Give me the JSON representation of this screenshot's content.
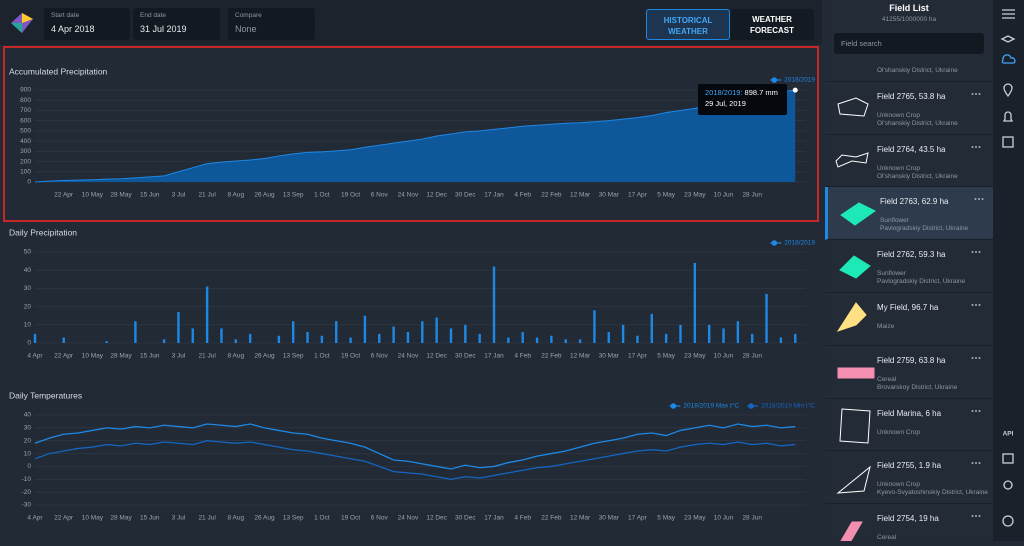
{
  "header": {
    "start_label": "Start date",
    "start_value": "4 Apr 2018",
    "end_label": "End date",
    "end_value": "31 Jul 2019",
    "compare_label": "Compare",
    "compare_value": "None",
    "historical": "HISTORICAL WEATHER",
    "forecast": "WEATHER FORECAST"
  },
  "field_list": {
    "title": "Field List",
    "area": "41255/1000000 ha",
    "search": "Field search",
    "items": [
      {
        "location": "Ol'shanskiy District, Ukraine"
      },
      {
        "name": "Field 2765, 53.8 ha",
        "crop": "Unknown Crop",
        "location": "Ol'shanskiy District, Ukraine"
      },
      {
        "name": "Field 2764, 43.5 ha",
        "crop": "Unknown Crop",
        "location": "Ol'shanskiy District, Ukraine"
      },
      {
        "name": "Field 2763, 62.9 ha",
        "crop": "Sunflower",
        "location": "Pavlogradskiy District, Ukraine"
      },
      {
        "name": "Field 2762, 59.3 ha",
        "crop": "Sunflower",
        "location": "Pavlogradskiy District, Ukraine"
      },
      {
        "name": "My Field, 96.7 ha",
        "crop": "Maize"
      },
      {
        "name": "Field 2759, 63.8 ha",
        "crop": "Cereal",
        "location": "Brovarskoy District, Ukraine"
      },
      {
        "name": "Field Marina, 6 ha",
        "crop": "Unknown Crop"
      },
      {
        "name": "Field 2755, 1.9 ha",
        "crop": "Unknown Crop",
        "location": "Kyevo-Svyatoshinskiy District, Ukraine"
      },
      {
        "name": "Field 2754, 19 ha",
        "crop": "Cereal"
      }
    ]
  },
  "sidebar": {
    "api": "API"
  },
  "chart_data": [
    {
      "type": "area",
      "title": "Accumulated Precipitation",
      "categories": [
        null,
        null,
        "22 Apr",
        null,
        "10 May",
        null,
        "28 May",
        null,
        "15 Jun",
        null,
        "3 Jul",
        null,
        "21 Jul",
        null,
        "8 Aug",
        null,
        "26 Aug",
        null,
        "13 Sep",
        null,
        "1 Oct",
        null,
        "19 Oct",
        null,
        "6 Nov",
        null,
        "24 Nov",
        null,
        "12 Dec",
        null,
        "30 Dec",
        null,
        "17 Jan",
        null,
        "4 Feb",
        null,
        "22 Feb",
        null,
        "12 Mar",
        null,
        "30 Mar",
        null,
        "17 Apr",
        null,
        "5 May",
        null,
        "23 May",
        null,
        "10 Jun",
        null,
        "28 Jun",
        null,
        null,
        null
      ],
      "series": [
        {
          "name": "2018/2019",
          "color": "#1e88e5",
          "values": [
            0,
            8,
            15,
            18,
            22,
            28,
            32,
            40,
            50,
            60,
            100,
            140,
            180,
            195,
            205,
            215,
            230,
            255,
            275,
            290,
            295,
            305,
            315,
            340,
            360,
            380,
            400,
            420,
            450,
            470,
            490,
            500,
            515,
            530,
            545,
            555,
            565,
            575,
            580,
            590,
            600,
            615,
            630,
            650,
            680,
            700,
            720,
            750,
            780,
            810,
            840,
            860,
            880,
            898.7
          ]
        }
      ],
      "ylim": [
        0,
        900
      ],
      "yticks": [
        0,
        100,
        200,
        300,
        400,
        500,
        600,
        700,
        800,
        900
      ],
      "grid": true,
      "tooltip": {
        "label": "2018/2019:",
        "value": "898.7 mm",
        "date": "29 Jul, 2019"
      }
    },
    {
      "type": "bar",
      "title": "Daily Precipitation",
      "categories": [
        "4 Apr",
        null,
        "22 Apr",
        null,
        "10 May",
        null,
        "28 May",
        null,
        "15 Jun",
        null,
        "3 Jul",
        null,
        "21 Jul",
        null,
        "8 Aug",
        null,
        "26 Aug",
        null,
        "13 Sep",
        null,
        "1 Oct",
        null,
        "19 Oct",
        null,
        "6 Nov",
        null,
        "24 Nov",
        null,
        "12 Dec",
        null,
        "30 Dec",
        null,
        "17 Jan",
        null,
        "4 Feb",
        null,
        "22 Feb",
        null,
        "12 Mar",
        null,
        "30 Mar",
        null,
        "17 Apr",
        null,
        "5 May",
        null,
        "23 May",
        null,
        "10 Jun",
        null,
        "28 Jun",
        null,
        null,
        null
      ],
      "series": [
        {
          "name": "2018/2019",
          "color": "#1e88e5",
          "values": [
            5,
            0,
            3,
            0,
            0,
            1,
            0,
            12,
            0,
            2,
            17,
            8,
            31,
            8,
            2,
            5,
            0,
            4,
            12,
            6,
            4,
            12,
            3,
            15,
            5,
            9,
            6,
            12,
            14,
            8,
            10,
            5,
            42,
            3,
            6,
            3,
            4,
            2,
            2,
            18,
            6,
            10,
            4,
            16,
            5,
            10,
            44,
            10,
            8,
            12,
            5,
            27,
            3,
            5
          ]
        }
      ],
      "ylim": [
        0,
        50
      ],
      "yticks": [
        0,
        10,
        20,
        30,
        40,
        50
      ],
      "grid": true
    },
    {
      "type": "line",
      "title": "Daily Temperatures",
      "categories": [
        "4 Apr",
        null,
        "22 Apr",
        null,
        "10 May",
        null,
        "28 May",
        null,
        "15 Jun",
        null,
        "3 Jul",
        null,
        "21 Jul",
        null,
        "8 Aug",
        null,
        "26 Aug",
        null,
        "13 Sep",
        null,
        "1 Oct",
        null,
        "19 Oct",
        null,
        "6 Nov",
        null,
        "24 Nov",
        null,
        "12 Dec",
        null,
        "30 Dec",
        null,
        "17 Jan",
        null,
        "4 Feb",
        null,
        "22 Feb",
        null,
        "12 Mar",
        null,
        "30 Mar",
        null,
        "17 Apr",
        null,
        "5 May",
        null,
        "23 May",
        null,
        "10 Jun",
        null,
        "28 Jun",
        null,
        null,
        null
      ],
      "series": [
        {
          "name": "2018/2019 Max t°C",
          "color": "#1e88e5",
          "values": [
            18,
            22,
            25,
            26,
            28,
            30,
            29,
            31,
            30,
            32,
            31,
            30,
            33,
            32,
            31,
            33,
            30,
            28,
            26,
            25,
            22,
            20,
            18,
            15,
            10,
            5,
            4,
            2,
            0,
            -2,
            1,
            -1,
            0,
            3,
            5,
            8,
            10,
            12,
            15,
            18,
            20,
            22,
            25,
            26,
            24,
            28,
            30,
            32,
            30,
            33,
            31,
            32,
            30,
            31
          ]
        },
        {
          "name": "2018/2019 Min t°C",
          "color": "#1565c0",
          "values": [
            6,
            10,
            12,
            14,
            15,
            17,
            16,
            18,
            17,
            19,
            18,
            17,
            20,
            19,
            18,
            19,
            17,
            15,
            13,
            12,
            10,
            8,
            6,
            4,
            0,
            -4,
            -5,
            -6,
            -8,
            -10,
            -8,
            -9,
            -7,
            -5,
            -3,
            -1,
            0,
            2,
            4,
            6,
            8,
            10,
            12,
            13,
            12,
            15,
            17,
            18,
            17,
            19,
            17,
            18,
            16,
            17
          ]
        }
      ],
      "ylim": [
        -30,
        40
      ],
      "yticks": [
        -30,
        -20,
        -10,
        0,
        10,
        20,
        30,
        40
      ],
      "grid": true
    }
  ]
}
